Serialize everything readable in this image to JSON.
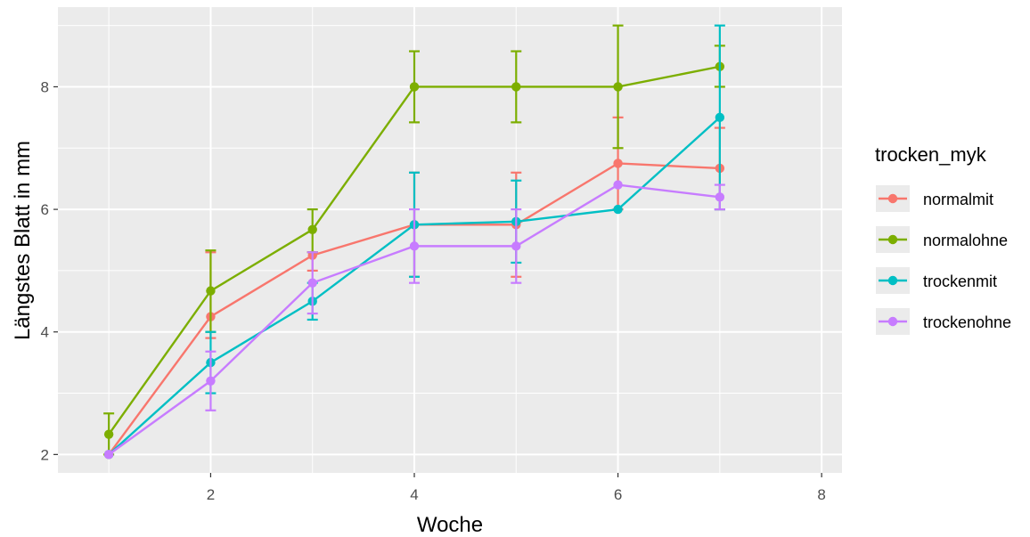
{
  "chart_data": {
    "type": "line",
    "xlabel": "Woche",
    "ylabel": "Längstes Blatt in mm",
    "xlim": [
      0.5,
      8.2
    ],
    "ylim": [
      1.7,
      9.3
    ],
    "x_ticks": [
      2,
      4,
      6,
      8
    ],
    "y_ticks": [
      2,
      4,
      6,
      8
    ],
    "x_tick_labels": [
      "2",
      "4",
      "6",
      "8"
    ],
    "y_tick_labels": [
      "2",
      "4",
      "6",
      "8"
    ],
    "grid": true,
    "background": "#ebebeb",
    "legend": {
      "title": "trocken_myk",
      "position": "right"
    },
    "series": [
      {
        "name": "normalmit",
        "color": "#f8766d",
        "x": [
          1,
          2,
          3,
          4,
          5,
          6,
          7
        ],
        "y": [
          2.0,
          4.25,
          5.25,
          5.75,
          5.75,
          6.75,
          6.67
        ],
        "err_low": [
          2.0,
          3.9,
          5.0,
          4.9,
          4.9,
          6.0,
          6.0
        ],
        "err_high": [
          2.0,
          5.3,
          5.3,
          6.6,
          6.6,
          7.5,
          7.33
        ]
      },
      {
        "name": "normalohne",
        "color": "#7cae00",
        "x": [
          1,
          2,
          3,
          4,
          5,
          6,
          7
        ],
        "y": [
          2.33,
          4.67,
          5.67,
          8.0,
          8.0,
          8.0,
          8.33
        ],
        "err_low": [
          2.0,
          4.0,
          5.3,
          7.42,
          7.42,
          7.0,
          8.0
        ],
        "err_high": [
          2.67,
          5.33,
          6.0,
          8.58,
          8.58,
          9.0,
          8.67
        ]
      },
      {
        "name": "trockenmit",
        "color": "#00bfc4",
        "x": [
          1,
          2,
          3,
          4,
          5,
          6,
          7
        ],
        "y": [
          2.0,
          3.5,
          4.5,
          5.75,
          5.8,
          6.0,
          7.5
        ],
        "err_low": [
          2.0,
          3.0,
          4.2,
          4.9,
          5.13,
          6.0,
          6.0
        ],
        "err_high": [
          2.0,
          4.0,
          4.8,
          6.6,
          6.47,
          6.0,
          9.0
        ]
      },
      {
        "name": "trockenohne",
        "color": "#c77cff",
        "x": [
          1,
          2,
          3,
          4,
          5,
          6,
          7
        ],
        "y": [
          2.0,
          3.2,
          4.8,
          5.4,
          5.4,
          6.4,
          6.2
        ],
        "err_low": [
          2.0,
          2.72,
          4.3,
          4.8,
          4.8,
          6.4,
          6.0
        ],
        "err_high": [
          2.0,
          3.68,
          5.3,
          6.0,
          6.0,
          6.4,
          6.4
        ]
      }
    ]
  }
}
